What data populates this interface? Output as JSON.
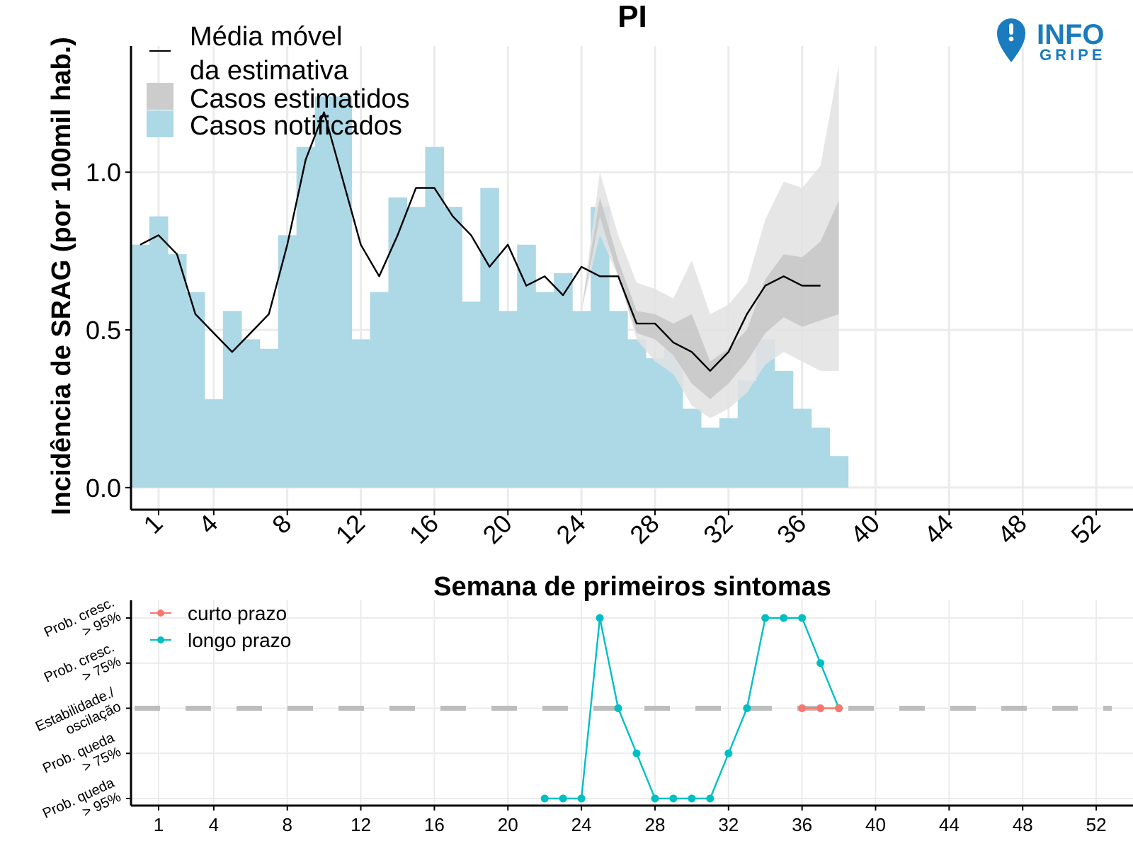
{
  "header": {
    "title": "PI",
    "logo": {
      "icon": "location-pin-exclamation-icon",
      "line1": "INFO",
      "line2": "GRIPE",
      "color": "#1a7bbf"
    }
  },
  "colors": {
    "notified": "#add8e6",
    "estimated_outer": "#e2e2e2",
    "estimated_inner": "#c6c6c6",
    "moving_average": "#000000",
    "short_term": "#f8766d",
    "long_term": "#00bfc4",
    "stability_line": "#bdbdbd",
    "grid": "#ebebeb"
  },
  "chart_data": [
    {
      "type": "bar",
      "title": "PI",
      "xlabel": "Semana de primeiros sintomas",
      "ylabel": "Incidência de SRAG (por 100mil hab.)",
      "xlim": [
        -0.5,
        54
      ],
      "ylim": [
        -0.07,
        1.4
      ],
      "x_ticks": [
        1,
        4,
        8,
        12,
        16,
        20,
        24,
        28,
        32,
        36,
        40,
        44,
        48,
        52
      ],
      "x_tick_labels": [
        "1",
        "4",
        "8",
        "12",
        "16",
        "20",
        "24",
        "28",
        "32",
        "36",
        "40",
        "44",
        "48",
        "52"
      ],
      "y_ticks": [
        0.0,
        0.5,
        1.0
      ],
      "y_tick_labels": [
        "0.0",
        "0.5",
        "1.0"
      ],
      "grid": true,
      "legend": {
        "position": "top-left",
        "entries": [
          {
            "label_line1": "Média móvel",
            "label_line2": "da estimativa",
            "kind": "line"
          },
          {
            "label": "Casos estimatidos",
            "kind": "ribbon"
          },
          {
            "label": "Casos notificados",
            "kind": "bar"
          }
        ]
      },
      "notified": {
        "name": "Casos notificados",
        "weeks": [
          0,
          1,
          2,
          3,
          4,
          5,
          6,
          7,
          8,
          9,
          10,
          11,
          12,
          13,
          14,
          15,
          16,
          17,
          18,
          19,
          20,
          21,
          22,
          23,
          24,
          25,
          26,
          27,
          28,
          29,
          30,
          31,
          32,
          33,
          34,
          35,
          36,
          37,
          38
        ],
        "values": [
          0.77,
          0.86,
          0.74,
          0.62,
          0.28,
          0.56,
          0.47,
          0.44,
          0.8,
          1.08,
          1.24,
          1.24,
          0.47,
          0.62,
          0.92,
          0.89,
          1.08,
          0.89,
          0.59,
          0.95,
          0.56,
          0.77,
          0.62,
          0.68,
          0.56,
          0.89,
          0.56,
          0.47,
          0.41,
          0.44,
          0.25,
          0.19,
          0.22,
          0.34,
          0.47,
          0.37,
          0.25,
          0.19,
          0.1
        ]
      },
      "estimated": {
        "name": "Casos estimatidos",
        "weeks": [
          24,
          25,
          26,
          27,
          28,
          29,
          30,
          31,
          32,
          33,
          34,
          35,
          36,
          37,
          38
        ],
        "outer_low": [
          0.56,
          0.8,
          0.67,
          0.47,
          0.4,
          0.36,
          0.26,
          0.22,
          0.25,
          0.3,
          0.39,
          0.43,
          0.4,
          0.37,
          0.37
        ],
        "outer_high": [
          0.56,
          1.0,
          0.8,
          0.65,
          0.63,
          0.6,
          0.72,
          0.55,
          0.58,
          0.65,
          0.85,
          0.97,
          0.95,
          1.02,
          1.34
        ],
        "inner_low": [
          0.56,
          0.86,
          0.67,
          0.49,
          0.47,
          0.42,
          0.33,
          0.28,
          0.33,
          0.4,
          0.49,
          0.54,
          0.51,
          0.53,
          0.55
        ],
        "inner_high": [
          0.56,
          0.92,
          0.72,
          0.56,
          0.55,
          0.52,
          0.55,
          0.4,
          0.44,
          0.5,
          0.66,
          0.74,
          0.73,
          0.78,
          0.91
        ]
      },
      "moving_average": {
        "name": "Média móvel da estimativa",
        "weeks": [
          0,
          1,
          2,
          3,
          4,
          5,
          6,
          7,
          8,
          9,
          10,
          11,
          12,
          13,
          14,
          15,
          16,
          17,
          18,
          19,
          20,
          21,
          22,
          23,
          24,
          25,
          26,
          27,
          28,
          29,
          30,
          31,
          32,
          33,
          34,
          35,
          36,
          37
        ],
        "values": [
          0.77,
          0.8,
          0.74,
          0.55,
          0.49,
          0.43,
          0.49,
          0.55,
          0.77,
          1.04,
          1.19,
          0.98,
          0.77,
          0.67,
          0.8,
          0.95,
          0.95,
          0.86,
          0.8,
          0.7,
          0.77,
          0.64,
          0.67,
          0.61,
          0.7,
          0.67,
          0.67,
          0.52,
          0.52,
          0.46,
          0.43,
          0.37,
          0.43,
          0.55,
          0.64,
          0.67,
          0.64,
          0.64
        ]
      }
    },
    {
      "type": "line",
      "xlim": [
        -0.5,
        54
      ],
      "x_ticks": [
        1,
        4,
        8,
        12,
        16,
        20,
        24,
        28,
        32,
        36,
        40,
        44,
        48,
        52
      ],
      "x_tick_labels": [
        "1",
        "4",
        "8",
        "12",
        "16",
        "20",
        "24",
        "28",
        "32",
        "36",
        "40",
        "44",
        "48",
        "52"
      ],
      "y_levels": [
        -2,
        -1,
        0,
        1,
        2
      ],
      "y_tick_labels": [
        [
          "Prob. queda",
          "> 95%"
        ],
        [
          "Prob. queda",
          "> 75%"
        ],
        [
          "Estabilidade./",
          "oscilação"
        ],
        [
          "Prob. cresc.",
          "> 75%"
        ],
        [
          "Prob. cresc.",
          "> 95%"
        ]
      ],
      "stability_level": 0,
      "legend": {
        "position": "top-left",
        "entries": [
          "curto prazo",
          "longo prazo"
        ]
      },
      "series": [
        {
          "name": "curto prazo",
          "x": [
            36,
            37,
            38
          ],
          "y": [
            0,
            0,
            0
          ]
        },
        {
          "name": "longo prazo",
          "x": [
            22,
            23,
            24,
            25,
            26,
            27,
            28,
            29,
            30,
            31,
            32,
            33,
            34,
            35,
            36,
            37,
            38
          ],
          "y": [
            -2,
            -2,
            -2,
            2,
            0,
            -1,
            -2,
            -2,
            -2,
            -2,
            -1,
            0,
            2,
            2,
            2,
            1,
            0
          ]
        }
      ]
    }
  ]
}
